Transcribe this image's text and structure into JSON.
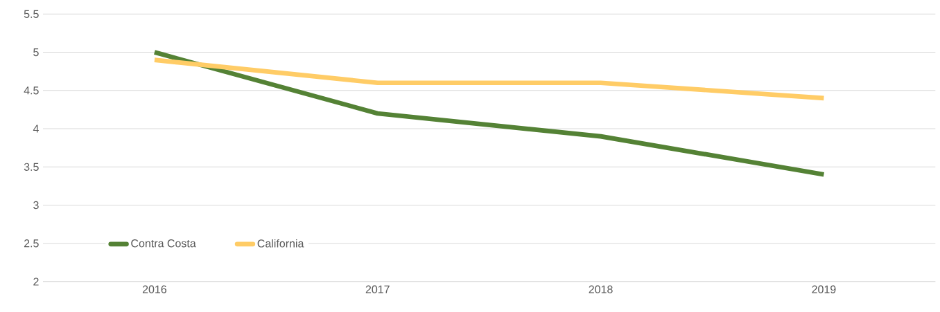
{
  "chart_data": {
    "type": "line",
    "categories": [
      "2016",
      "2017",
      "2018",
      "2019"
    ],
    "series": [
      {
        "name": "Contra Costa",
        "color": "#548235",
        "values": [
          5.0,
          4.2,
          3.9,
          3.4
        ]
      },
      {
        "name": "California",
        "color": "#ffcc66",
        "values": [
          4.9,
          4.6,
          4.6,
          4.4
        ]
      }
    ],
    "ylim": [
      2,
      5.5
    ],
    "yticks": [
      2,
      2.5,
      3,
      3.5,
      4,
      4.5,
      5,
      5.5
    ],
    "grid": "y",
    "legend": "bottom left",
    "marker": "none",
    "line_style": "solid"
  }
}
